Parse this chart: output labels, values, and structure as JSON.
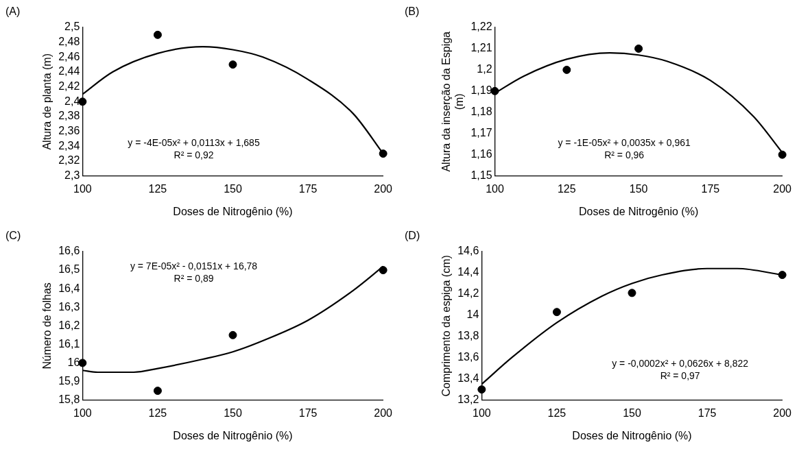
{
  "chart_data": [
    {
      "type": "scatter",
      "title": "(A)",
      "xlabel": "Doses de Nitrogênio (%)",
      "ylabel": "Altura de planta (m)",
      "xlim": [
        100,
        200
      ],
      "xticks": [
        100,
        125,
        150,
        175,
        200
      ],
      "ylim": [
        2.3,
        2.5
      ],
      "yticks": [
        {
          "value": 2.3,
          "label": "2,3"
        },
        {
          "value": 2.32,
          "label": "2,32"
        },
        {
          "value": 2.34,
          "label": "2,34"
        },
        {
          "value": 2.36,
          "label": "2,36"
        },
        {
          "value": 2.38,
          "label": "2,38"
        },
        {
          "value": 2.4,
          "label": "2,4"
        },
        {
          "value": 2.42,
          "label": "2,42"
        },
        {
          "value": 2.44,
          "label": "2,44"
        },
        {
          "value": 2.46,
          "label": "2,46"
        },
        {
          "value": 2.48,
          "label": "2,48"
        },
        {
          "value": 2.5,
          "label": "2,5"
        }
      ],
      "grid": false,
      "legend": false,
      "marker": "circle",
      "series": [
        {
          "color": "#000000",
          "x": [
            100,
            125,
            150,
            200
          ],
          "values": [
            2.4,
            2.49,
            2.45,
            2.33
          ]
        },
        {
          "type": "line",
          "color": "#000000",
          "marker": "none",
          "x": [
            100,
            110,
            125,
            140,
            150,
            160,
            175,
            190,
            200
          ],
          "values": [
            2.41,
            2.44,
            2.465,
            2.474,
            2.47,
            2.46,
            2.43,
            2.384,
            2.33
          ]
        }
      ],
      "annotations": [
        "y = -4E-05x² + 0,0113x + 1,685",
        "R² = 0,92"
      ]
    },
    {
      "type": "scatter",
      "title": "(B)",
      "xlabel": "Doses de Nitrogênio (%)",
      "ylabel": "Altura da inserção da Espiga (m)",
      "xlim": [
        100,
        200
      ],
      "xticks": [
        100,
        125,
        150,
        175,
        200
      ],
      "ylim": [
        1.15,
        1.22
      ],
      "yticks": [
        {
          "value": 1.15,
          "label": "1,15"
        },
        {
          "value": 1.16,
          "label": "1,16"
        },
        {
          "value": 1.17,
          "label": "1,17"
        },
        {
          "value": 1.18,
          "label": "1,18"
        },
        {
          "value": 1.19,
          "label": "1,19"
        },
        {
          "value": 1.2,
          "label": "1,2"
        },
        {
          "value": 1.21,
          "label": "1,21"
        },
        {
          "value": 1.22,
          "label": "1,22"
        }
      ],
      "grid": false,
      "legend": false,
      "marker": "circle",
      "series": [
        {
          "color": "#000000",
          "x": [
            100,
            125,
            150,
            200
          ],
          "values": [
            1.19,
            1.2,
            1.21,
            1.16
          ]
        },
        {
          "type": "line",
          "color": "#000000",
          "marker": "none",
          "x": [
            100,
            110,
            125,
            140,
            150,
            160,
            175,
            190,
            200
          ],
          "values": [
            1.189,
            1.197,
            1.205,
            1.208,
            1.207,
            1.204,
            1.195,
            1.178,
            1.161
          ]
        }
      ],
      "annotations": [
        "y = -1E-05x² + 0,0035x + 0,961",
        "R² = 0,96"
      ]
    },
    {
      "type": "scatter",
      "title": "(C)",
      "xlabel": "Doses de Nitrogênio (%)",
      "ylabel": "Número de folhas",
      "xlim": [
        100,
        200
      ],
      "xticks": [
        100,
        125,
        150,
        175,
        200
      ],
      "ylim": [
        15.8,
        16.6
      ],
      "yticks": [
        {
          "value": 15.8,
          "label": "15,8"
        },
        {
          "value": 15.9,
          "label": "15,9"
        },
        16,
        {
          "value": 16.1,
          "label": "16,1"
        },
        {
          "value": 16.2,
          "label": "16,2"
        },
        {
          "value": 16.3,
          "label": "16,3"
        },
        {
          "value": 16.4,
          "label": "16,4"
        },
        {
          "value": 16.5,
          "label": "16,5"
        },
        {
          "value": 16.6,
          "label": "16,6"
        }
      ],
      "grid": false,
      "legend": false,
      "marker": "circle",
      "series": [
        {
          "color": "#000000",
          "x": [
            100,
            125,
            150,
            200
          ],
          "values": [
            16.0,
            15.85,
            16.15,
            16.5
          ]
        },
        {
          "type": "line",
          "color": "#000000",
          "marker": "none",
          "x": [
            100,
            105,
            117,
            125,
            140,
            150,
            160,
            175,
            190,
            200
          ],
          "values": [
            15.96,
            15.95,
            15.95,
            15.97,
            16.02,
            16.06,
            16.12,
            16.23,
            16.39,
            16.52
          ]
        }
      ],
      "annotations": [
        "y = 7E-05x² - 0,0151x + 16,78",
        "R² = 0,89"
      ]
    },
    {
      "type": "scatter",
      "title": "(D)",
      "xlabel": "Doses de Nitrogênio (%)",
      "ylabel": "Comprimento da espiga (cm)",
      "xlim": [
        100,
        200
      ],
      "xticks": [
        100,
        125,
        150,
        175,
        200
      ],
      "ylim": [
        13.2,
        14.6
      ],
      "yticks": [
        {
          "value": 13.2,
          "label": "13,2"
        },
        {
          "value": 13.4,
          "label": "13,4"
        },
        {
          "value": 13.6,
          "label": "13,6"
        },
        {
          "value": 13.8,
          "label": "13,8"
        },
        14,
        {
          "value": 14.2,
          "label": "14,2"
        },
        {
          "value": 14.4,
          "label": "14,4"
        },
        {
          "value": 14.6,
          "label": "14,6"
        }
      ],
      "grid": false,
      "legend": false,
      "marker": "circle",
      "series": [
        {
          "color": "#000000",
          "x": [
            100,
            125,
            150,
            200
          ],
          "values": [
            13.3,
            14.03,
            14.21,
            14.38
          ]
        },
        {
          "type": "line",
          "color": "#000000",
          "marker": "none",
          "x": [
            100,
            110,
            125,
            140,
            150,
            160,
            175,
            185,
            200
          ],
          "values": [
            13.35,
            13.6,
            13.93,
            14.18,
            14.3,
            14.38,
            14.44,
            14.44,
            14.38
          ]
        }
      ],
      "annotations": [
        "y = -0,0002x² + 0,0626x + 8,822",
        "R² = 0,97"
      ]
    }
  ]
}
